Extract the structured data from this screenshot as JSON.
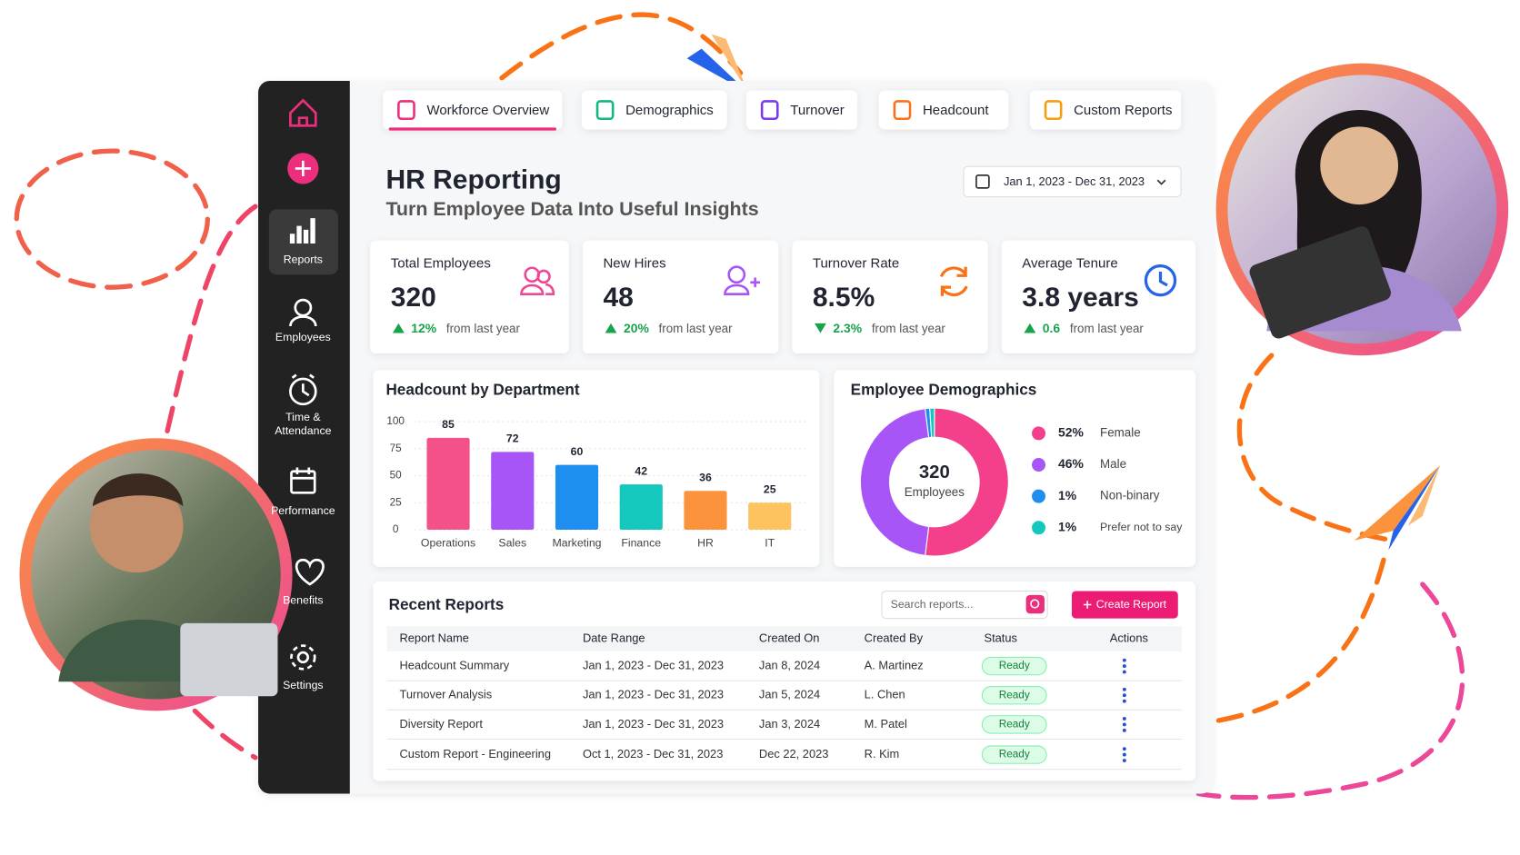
{
  "sidebar": {
    "items": [
      "Reports",
      "Employees",
      "Time &",
      "Attendance",
      "Performance",
      "Benefits",
      "Settings"
    ]
  },
  "tabs": [
    "Workforce Overview",
    "Demographics",
    "Turnover",
    "Headcount",
    "Custom Reports"
  ],
  "header": {
    "title": "HR Reporting",
    "subtitle": "Turn Employee Data Into Useful Insights",
    "date_range": "Jan 1, 2023 - Dec 31, 2023"
  },
  "kpis": [
    {
      "label": "Total Employees",
      "value": "320",
      "change": "12%",
      "note": "from last year",
      "direction": "up"
    },
    {
      "label": "New Hires",
      "value": "48",
      "change": "20%",
      "note": "from last year",
      "direction": "up"
    },
    {
      "label": "Turnover Rate",
      "value": "8.5%",
      "change": "2.3%",
      "note": "from last year",
      "direction": "down"
    },
    {
      "label": "Average Tenure",
      "value": "3.8 years",
      "change": "0.6",
      "note": "from last year",
      "direction": "up"
    }
  ],
  "chart_data": [
    {
      "type": "bar",
      "title": "Headcount by Department",
      "categories": [
        "Operations",
        "Sales",
        "Marketing",
        "Finance",
        "HR",
        "IT"
      ],
      "values": [
        85,
        72,
        60,
        42,
        36,
        25
      ],
      "colors": [
        "#f4508a",
        "#a855f7",
        "#1e8ff0",
        "#14c8bd",
        "#fb923c",
        "#fcc35e"
      ],
      "ylim": [
        0,
        100
      ],
      "yticks": [
        0,
        25,
        50,
        75,
        100
      ],
      "grid": true
    },
    {
      "type": "pie",
      "title": "Employee Demographics",
      "center_value": "320",
      "center_label": "Employees",
      "categories": [
        "Female",
        "Male",
        "Non-binary",
        "Prefer not to say"
      ],
      "values": [
        52,
        46,
        1,
        1
      ],
      "value_labels": [
        "52%",
        "46%",
        "1%",
        "1%"
      ],
      "colors": [
        "#f43f8a",
        "#a855f7",
        "#1e8ff0",
        "#14c8bd"
      ]
    }
  ],
  "table": {
    "title": "Recent Reports",
    "search_placeholder": "Search reports...",
    "button": "Create Report",
    "columns": [
      "Report Name",
      "Date Range",
      "Created On",
      "Created By",
      "Status",
      "Actions"
    ],
    "rows": [
      [
        "Headcount Summary",
        "Jan 1, 2023 - Dec 31, 2023",
        "Jan 8, 2024",
        "A. Martinez",
        "Ready"
      ],
      [
        "Turnover Analysis",
        "Jan 1, 2023 - Dec 31, 2023",
        "Jan 5, 2024",
        "L. Chen",
        "Ready"
      ],
      [
        "Diversity Report",
        "Jan 1, 2023 - Dec 31, 2023",
        "Jan 3, 2024",
        "M. Patel",
        "Ready"
      ],
      [
        "Custom Report - Engineering",
        "Oct 1, 2023 - Dec 31, 2023",
        "Dec 22, 2023",
        "R. Kim",
        "Ready"
      ]
    ]
  }
}
